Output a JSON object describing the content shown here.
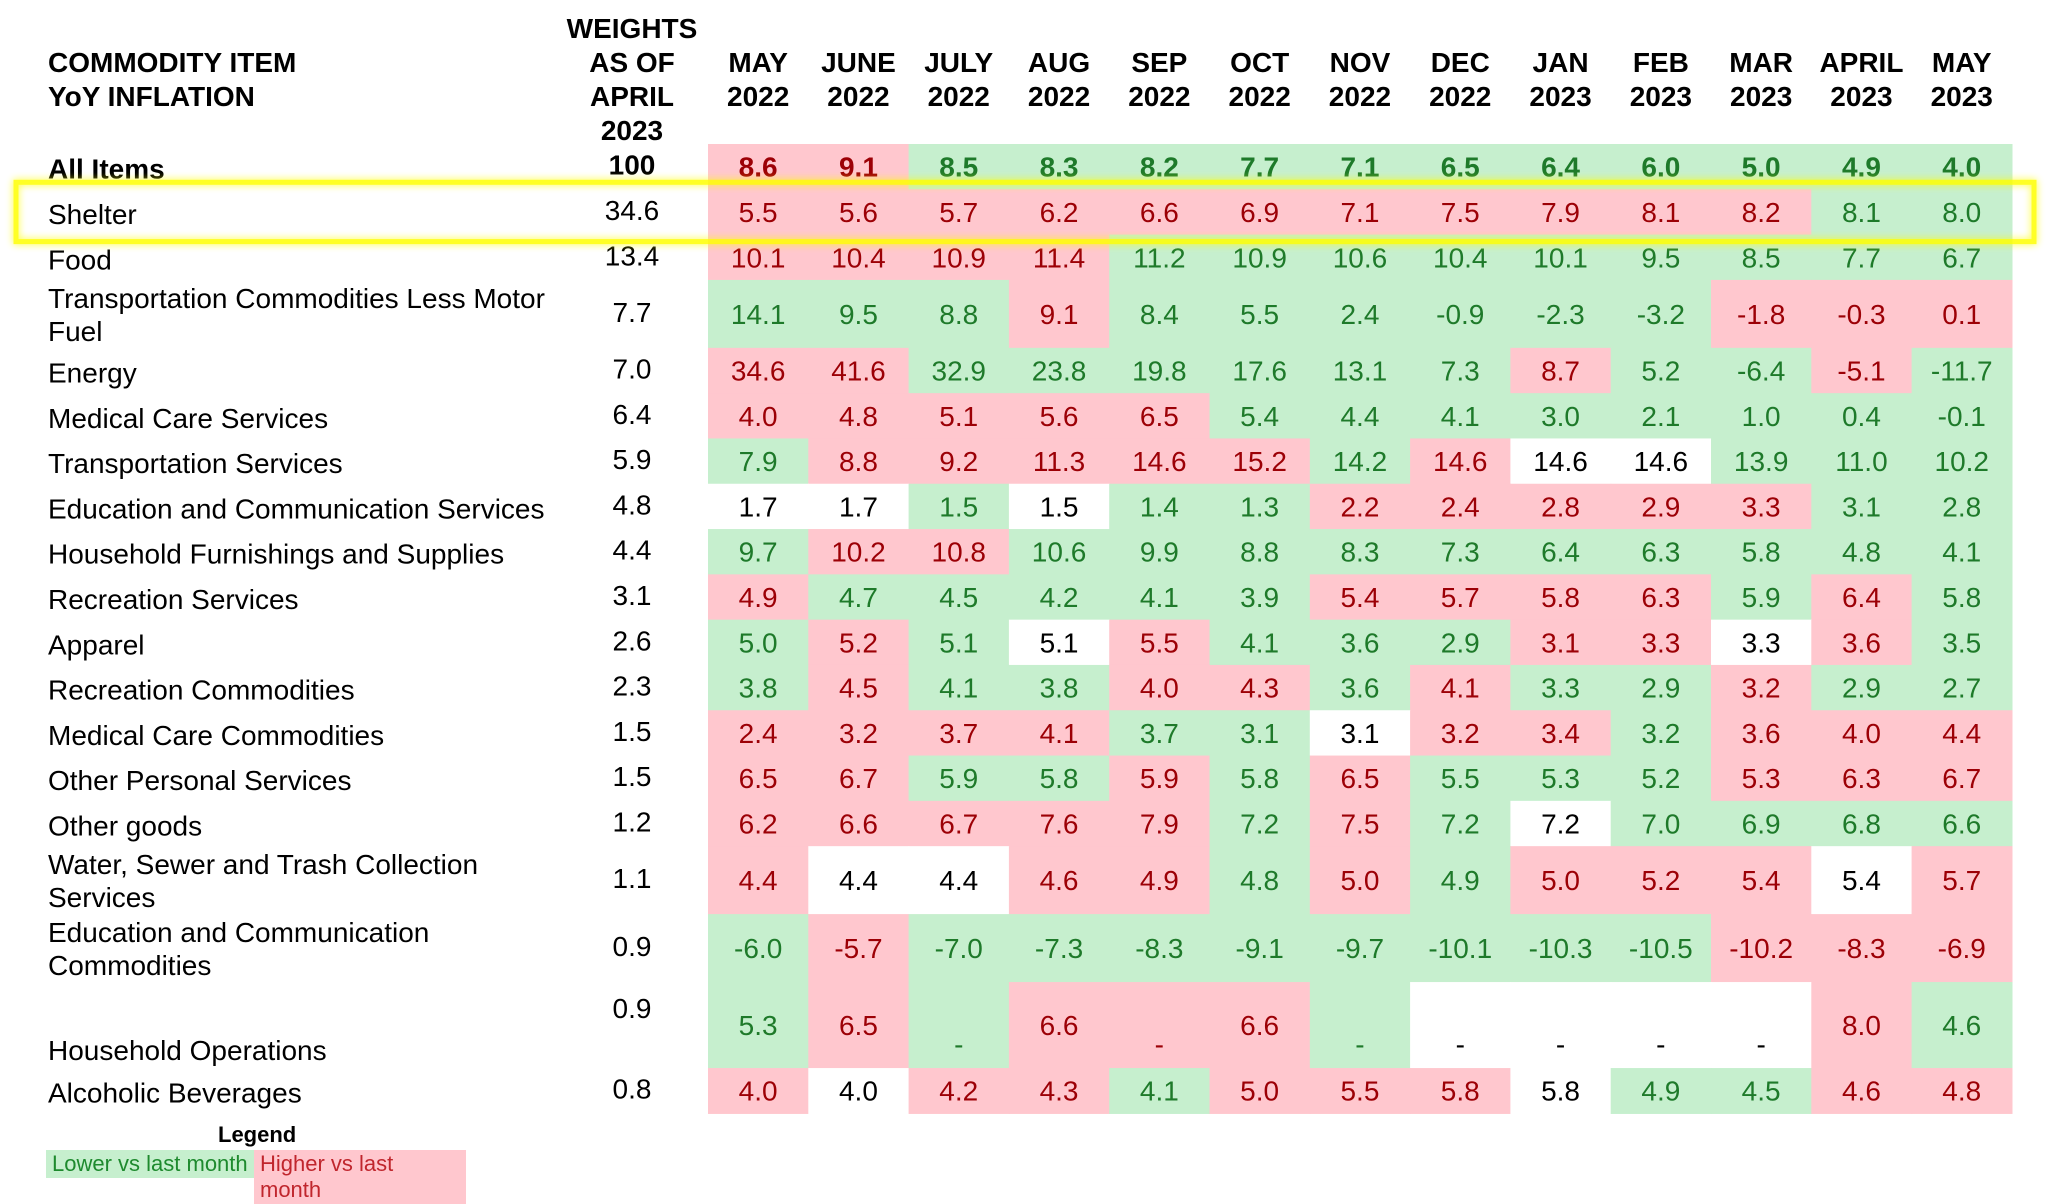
{
  "chart_data": {
    "type": "heatmap",
    "colors": {
      "green_bg": "#c6efce",
      "green_text": "#1e7a2a",
      "red_bg": "#ffc7ce",
      "red_text": "#9c0006",
      "white_bg": "#ffffff",
      "white_text": "#000000",
      "highlight": "#ffff00"
    },
    "header": {
      "item_lines": [
        "COMMODITY ITEM",
        "YoY INFLATION"
      ],
      "weight_lines": [
        "WEIGHTS",
        "AS OF",
        "APRIL",
        "2023"
      ]
    },
    "columns": [
      [
        "MAY",
        "2022"
      ],
      [
        "JUNE",
        "2022"
      ],
      [
        "JULY",
        "2022"
      ],
      [
        "AUG",
        "2022"
      ],
      [
        "SEP",
        "2022"
      ],
      [
        "OCT",
        "2022"
      ],
      [
        "NOV",
        "2022"
      ],
      [
        "DEC",
        "2022"
      ],
      [
        "JAN",
        "2023"
      ],
      [
        "FEB",
        "2023"
      ],
      [
        "MAR",
        "2023"
      ],
      [
        "APRIL",
        "2023"
      ],
      [
        "MAY",
        "2023"
      ]
    ],
    "rows": [
      {
        "label": [
          "All Items"
        ],
        "weight": "100",
        "bold": true,
        "values": [
          "8.6",
          "9.1",
          "8.5",
          "8.3",
          "8.2",
          "7.7",
          "7.1",
          "6.5",
          "6.4",
          "6.0",
          "5.0",
          "4.9",
          "4.0"
        ],
        "colors": [
          "r",
          "r",
          "g",
          "g",
          "g",
          "g",
          "g",
          "g",
          "g",
          "g",
          "g",
          "g",
          "g"
        ]
      },
      {
        "label": [
          "Shelter"
        ],
        "weight": "34.6",
        "highlighted": true,
        "values": [
          "5.5",
          "5.6",
          "5.7",
          "6.2",
          "6.6",
          "6.9",
          "7.1",
          "7.5",
          "7.9",
          "8.1",
          "8.2",
          "8.1",
          "8.0"
        ],
        "colors": [
          "r",
          "r",
          "r",
          "r",
          "r",
          "r",
          "r",
          "r",
          "r",
          "r",
          "r",
          "g",
          "g"
        ]
      },
      {
        "label": [
          "Food"
        ],
        "weight": "13.4",
        "values": [
          "10.1",
          "10.4",
          "10.9",
          "11.4",
          "11.2",
          "10.9",
          "10.6",
          "10.4",
          "10.1",
          "9.5",
          "8.5",
          "7.7",
          "6.7"
        ],
        "colors": [
          "r",
          "r",
          "r",
          "r",
          "g",
          "g",
          "g",
          "g",
          "g",
          "g",
          "g",
          "g",
          "g"
        ]
      },
      {
        "label": [
          "Transportation Commodities Less Motor",
          "Fuel"
        ],
        "weight": "7.7",
        "values": [
          "14.1",
          "9.5",
          "8.8",
          "9.1",
          "8.4",
          "5.5",
          "2.4",
          "-0.9",
          "-2.3",
          "-3.2",
          "-1.8",
          "-0.3",
          "0.1"
        ],
        "colors": [
          "g",
          "g",
          "g",
          "r",
          "g",
          "g",
          "g",
          "g",
          "g",
          "g",
          "r",
          "r",
          "r"
        ]
      },
      {
        "label": [
          "Energy"
        ],
        "weight": "7.0",
        "values": [
          "34.6",
          "41.6",
          "32.9",
          "23.8",
          "19.8",
          "17.6",
          "13.1",
          "7.3",
          "8.7",
          "5.2",
          "-6.4",
          "-5.1",
          "-11.7"
        ],
        "colors": [
          "r",
          "r",
          "g",
          "g",
          "g",
          "g",
          "g",
          "g",
          "r",
          "g",
          "g",
          "r",
          "g"
        ]
      },
      {
        "label": [
          "Medical Care Services"
        ],
        "weight": "6.4",
        "values": [
          "4.0",
          "4.8",
          "5.1",
          "5.6",
          "6.5",
          "5.4",
          "4.4",
          "4.1",
          "3.0",
          "2.1",
          "1.0",
          "0.4",
          "-0.1"
        ],
        "colors": [
          "r",
          "r",
          "r",
          "r",
          "r",
          "g",
          "g",
          "g",
          "g",
          "g",
          "g",
          "g",
          "g"
        ]
      },
      {
        "label": [
          "Transportation Services"
        ],
        "weight": "5.9",
        "values": [
          "7.9",
          "8.8",
          "9.2",
          "11.3",
          "14.6",
          "15.2",
          "14.2",
          "14.6",
          "14.6",
          "14.6",
          "13.9",
          "11.0",
          "10.2"
        ],
        "colors": [
          "g",
          "r",
          "r",
          "r",
          "r",
          "r",
          "g",
          "r",
          "w",
          "w",
          "g",
          "g",
          "g"
        ]
      },
      {
        "label": [
          "Education and Communication Services"
        ],
        "weight": "4.8",
        "values": [
          "1.7",
          "1.7",
          "1.5",
          "1.5",
          "1.4",
          "1.3",
          "2.2",
          "2.4",
          "2.8",
          "2.9",
          "3.3",
          "3.1",
          "2.8"
        ],
        "colors": [
          "w",
          "w",
          "g",
          "w",
          "g",
          "g",
          "r",
          "r",
          "r",
          "r",
          "r",
          "g",
          "g"
        ]
      },
      {
        "label": [
          "Household Furnishings and Supplies"
        ],
        "weight": "4.4",
        "values": [
          "9.7",
          "10.2",
          "10.8",
          "10.6",
          "9.9",
          "8.8",
          "8.3",
          "7.3",
          "6.4",
          "6.3",
          "5.8",
          "4.8",
          "4.1"
        ],
        "colors": [
          "g",
          "r",
          "r",
          "g",
          "g",
          "g",
          "g",
          "g",
          "g",
          "g",
          "g",
          "g",
          "g"
        ]
      },
      {
        "label": [
          "Recreation Services"
        ],
        "weight": "3.1",
        "values": [
          "4.9",
          "4.7",
          "4.5",
          "4.2",
          "4.1",
          "3.9",
          "5.4",
          "5.7",
          "5.8",
          "6.3",
          "5.9",
          "6.4",
          "5.8"
        ],
        "colors": [
          "r",
          "g",
          "g",
          "g",
          "g",
          "g",
          "r",
          "r",
          "r",
          "r",
          "g",
          "r",
          "g"
        ]
      },
      {
        "label": [
          "Apparel"
        ],
        "weight": "2.6",
        "values": [
          "5.0",
          "5.2",
          "5.1",
          "5.1",
          "5.5",
          "4.1",
          "3.6",
          "2.9",
          "3.1",
          "3.3",
          "3.3",
          "3.6",
          "3.5"
        ],
        "colors": [
          "g",
          "r",
          "g",
          "w",
          "r",
          "g",
          "g",
          "g",
          "r",
          "r",
          "w",
          "r",
          "g"
        ]
      },
      {
        "label": [
          "Recreation Commodities"
        ],
        "weight": "2.3",
        "values": [
          "3.8",
          "4.5",
          "4.1",
          "3.8",
          "4.0",
          "4.3",
          "3.6",
          "4.1",
          "3.3",
          "2.9",
          "3.2",
          "2.9",
          "2.7"
        ],
        "colors": [
          "g",
          "r",
          "g",
          "g",
          "r",
          "r",
          "g",
          "r",
          "g",
          "g",
          "r",
          "g",
          "g"
        ]
      },
      {
        "label": [
          "Medical Care Commodities"
        ],
        "weight": "1.5",
        "values": [
          "2.4",
          "3.2",
          "3.7",
          "4.1",
          "3.7",
          "3.1",
          "3.1",
          "3.2",
          "3.4",
          "3.2",
          "3.6",
          "4.0",
          "4.4"
        ],
        "colors": [
          "r",
          "r",
          "r",
          "r",
          "g",
          "g",
          "w",
          "r",
          "r",
          "g",
          "r",
          "r",
          "r"
        ]
      },
      {
        "label": [
          "Other Personal Services"
        ],
        "weight": "1.5",
        "values": [
          "6.5",
          "6.7",
          "5.9",
          "5.8",
          "5.9",
          "5.8",
          "6.5",
          "5.5",
          "5.3",
          "5.2",
          "5.3",
          "6.3",
          "6.7"
        ],
        "colors": [
          "r",
          "r",
          "g",
          "g",
          "r",
          "g",
          "r",
          "g",
          "g",
          "g",
          "r",
          "r",
          "r"
        ]
      },
      {
        "label": [
          "Other goods"
        ],
        "weight": "1.2",
        "values": [
          "6.2",
          "6.6",
          "6.7",
          "7.6",
          "7.9",
          "7.2",
          "7.5",
          "7.2",
          "7.2",
          "7.0",
          "6.9",
          "6.8",
          "6.6"
        ],
        "colors": [
          "r",
          "r",
          "r",
          "r",
          "r",
          "g",
          "r",
          "g",
          "w",
          "g",
          "g",
          "g",
          "g"
        ]
      },
      {
        "label": [
          "Water, Sewer and Trash Collection",
          "Services"
        ],
        "weight": "1.1",
        "values": [
          "4.4",
          "4.4",
          "4.4",
          "4.6",
          "4.9",
          "4.8",
          "5.0",
          "4.9",
          "5.0",
          "5.2",
          "5.4",
          "5.4",
          "5.7"
        ],
        "colors": [
          "r",
          "w",
          "w",
          "r",
          "r",
          "g",
          "r",
          "g",
          "r",
          "r",
          "r",
          "w",
          "r"
        ]
      },
      {
        "label": [
          "Education and Communication",
          "Commodities"
        ],
        "weight": "0.9",
        "values": [
          "-6.0",
          "-5.7",
          "-7.0",
          "-7.3",
          "-8.3",
          "-9.1",
          "-9.7",
          "-10.1",
          "-10.3",
          "-10.5",
          "-10.2",
          "-8.3",
          "-6.9"
        ],
        "colors": [
          "g",
          "r",
          "g",
          "g",
          "g",
          "g",
          "g",
          "g",
          "g",
          "g",
          "r",
          "r",
          "r"
        ]
      },
      {
        "label": [
          "Household Operations"
        ],
        "weight": "0.9",
        "tall": true,
        "values": [
          "5.3",
          "6.5",
          "-",
          "6.6",
          "-",
          "6.6",
          "-",
          "-",
          "-",
          "-",
          "-",
          "8.0",
          "4.6"
        ],
        "colors": [
          "g",
          "r",
          "g",
          "r",
          "r",
          "r",
          "g",
          "w",
          "w",
          "w",
          "w",
          "r",
          "g"
        ]
      },
      {
        "label": [
          "Alcoholic Beverages"
        ],
        "weight": "0.8",
        "values": [
          "4.0",
          "4.0",
          "4.2",
          "4.3",
          "4.1",
          "5.0",
          "5.5",
          "5.8",
          "5.8",
          "4.9",
          "4.5",
          "4.6",
          "4.8"
        ],
        "colors": [
          "r",
          "w",
          "r",
          "r",
          "g",
          "r",
          "r",
          "r",
          "w",
          "g",
          "g",
          "r",
          "r"
        ]
      }
    ]
  },
  "legend": {
    "title": "Legend",
    "lower": "Lower vs last month",
    "higher": "Higher vs last month"
  }
}
